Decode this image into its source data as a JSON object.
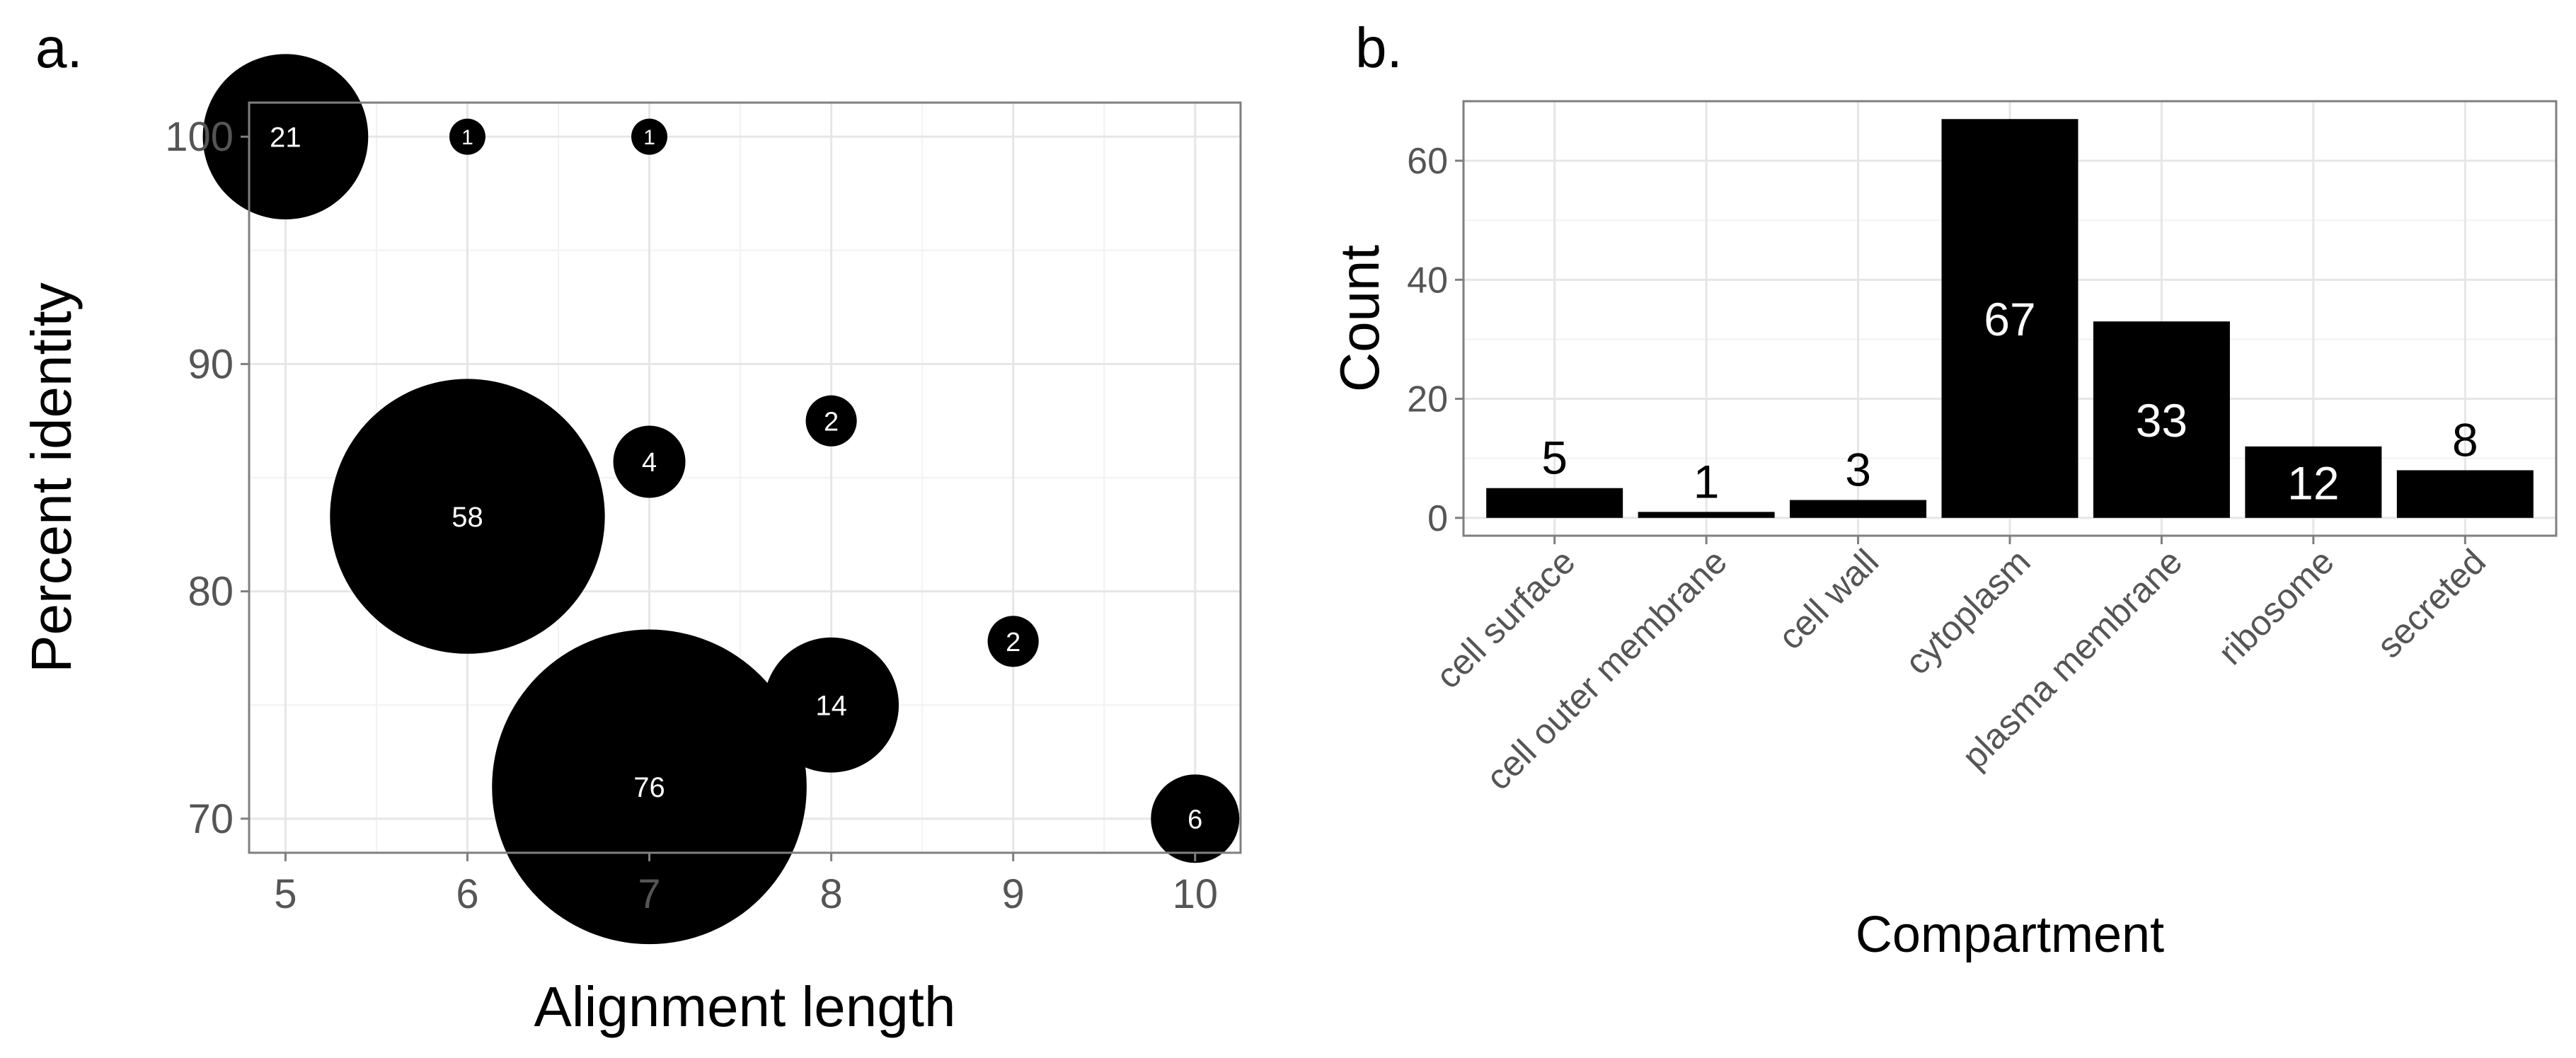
{
  "panels": {
    "a": "a.",
    "b": "b."
  },
  "chart_data": [
    {
      "type": "scatter",
      "subtype": "bubble",
      "panel": "a.",
      "xlabel": "Alignment length",
      "ylabel": "Percent identity",
      "xlim": [
        4.8,
        10.25
      ],
      "ylim": [
        68.5,
        101.5
      ],
      "xticks": [
        "5",
        "6",
        "7",
        "8",
        "9",
        "10"
      ],
      "yticks": [
        "70",
        "80",
        "90",
        "100"
      ],
      "grid": true,
      "points": [
        {
          "x": 5,
          "y": 100,
          "count": 21,
          "label": "21"
        },
        {
          "x": 6,
          "y": 100,
          "count": 1,
          "label": "1"
        },
        {
          "x": 7,
          "y": 100,
          "count": 1,
          "label": "1"
        },
        {
          "x": 6,
          "y": 83.3,
          "count": 58,
          "label": "58"
        },
        {
          "x": 7,
          "y": 85.7,
          "count": 4,
          "label": "4"
        },
        {
          "x": 8,
          "y": 87.5,
          "count": 2,
          "label": "2"
        },
        {
          "x": 7,
          "y": 71.4,
          "count": 76,
          "label": "76"
        },
        {
          "x": 8,
          "y": 75,
          "count": 14,
          "label": "14"
        },
        {
          "x": 9,
          "y": 77.8,
          "count": 2,
          "label": "2"
        },
        {
          "x": 10,
          "y": 70,
          "count": 6,
          "label": "6"
        }
      ],
      "color": "#000000"
    },
    {
      "type": "bar",
      "panel": "b.",
      "xlabel": "Compartment",
      "ylabel": "Count",
      "ylim": [
        -3,
        70
      ],
      "yticks": [
        "0",
        "20",
        "40",
        "60"
      ],
      "grid": true,
      "categories": [
        "cell surface",
        "cell outer membrane",
        "cell wall",
        "cytoplasm",
        "plasma membrane",
        "ribosome",
        "secreted"
      ],
      "values": [
        5,
        1,
        3,
        67,
        33,
        12,
        8
      ],
      "labels": [
        "5",
        "1",
        "3",
        "67",
        "33",
        "12",
        "8"
      ],
      "color": "#000000"
    }
  ]
}
